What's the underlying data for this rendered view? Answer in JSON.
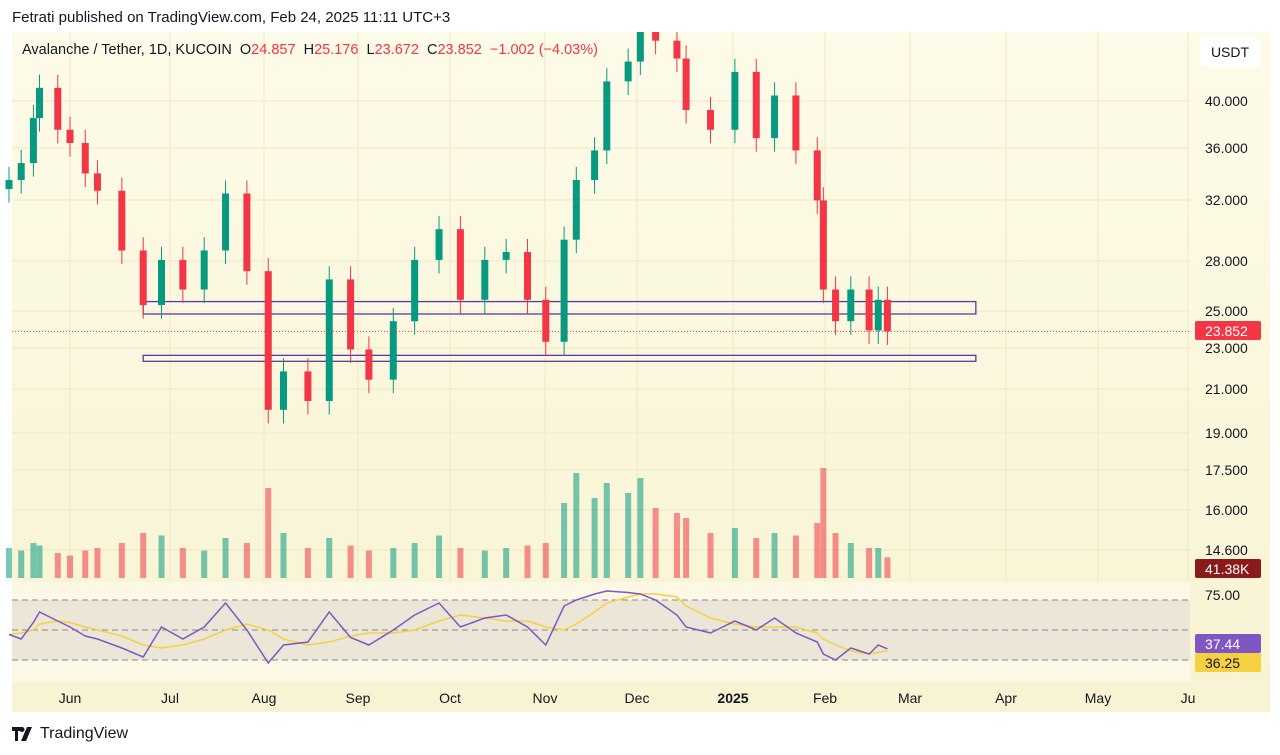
{
  "header": {
    "published": "Fetrati published on TradingView.com, Feb 24, 2025 11:11 UTC+3"
  },
  "legend": {
    "symbol": "Avalanche / Tether, 1D, KUCOIN",
    "o_label": "O",
    "o": "24.857",
    "h_label": "H",
    "h": "25.176",
    "l_label": "L",
    "l": "23.672",
    "c_label": "C",
    "c": "23.852",
    "change": "−1.002 (−4.03%)"
  },
  "currency_button": "USDT",
  "footer": {
    "brand": "TradingView",
    "logo_icon": "tradingview-logo-icon"
  },
  "colors": {
    "up": "#089981",
    "down": "#f23645",
    "rsi": "#7e57c2",
    "rsi_ma": "#f5d142",
    "zone": "#5b3a9e",
    "last_price": "#f23645",
    "volume_label": "#8b1a1a"
  },
  "chart_data": {
    "type": "candlestick",
    "price_scale": "log",
    "ylim": [
      14.6,
      47.5
    ],
    "y_ticks": [
      "40.000",
      "36.000",
      "32.000",
      "28.000",
      "25.000",
      "23.000",
      "21.000",
      "19.000",
      "17.500",
      "16.000",
      "14.600"
    ],
    "x_ticks": [
      "Jun",
      "Jul",
      "Aug",
      "Sep",
      "Oct",
      "Nov",
      "Dec",
      "2025",
      "Feb",
      "Mar",
      "Apr",
      "May",
      "Ju"
    ],
    "last_price_label": "23.852",
    "volume_label": "41.38K",
    "rsi_labels": {
      "upper": "75.00",
      "rsi": "37.44",
      "rsi_ma": "36.25"
    },
    "rsi_levels": [
      70,
      50,
      30
    ],
    "zones": [
      {
        "high": 25.5,
        "low": 24.8,
        "from": "2024-06-25",
        "to": "2025-03-25"
      },
      {
        "high": 22.6,
        "low": 22.3,
        "from": "2024-06-25",
        "to": "2025-03-25"
      }
    ],
    "dates": [
      "2024-05-12",
      "2024-05-16",
      "2024-05-20",
      "2024-05-22",
      "2024-05-28",
      "2024-06-01",
      "2024-06-06",
      "2024-06-10",
      "2024-06-18",
      "2024-06-25",
      "2024-07-01",
      "2024-07-08",
      "2024-07-15",
      "2024-07-22",
      "2024-07-29",
      "2024-08-05",
      "2024-08-10",
      "2024-08-18",
      "2024-08-25",
      "2024-09-01",
      "2024-09-07",
      "2024-09-15",
      "2024-09-22",
      "2024-09-30",
      "2024-10-07",
      "2024-10-15",
      "2024-10-22",
      "2024-10-29",
      "2024-11-04",
      "2024-11-10",
      "2024-11-14",
      "2024-11-20",
      "2024-11-24",
      "2024-12-01",
      "2024-12-05",
      "2024-12-10",
      "2024-12-17",
      "2024-12-20",
      "2024-12-28",
      "2025-01-05",
      "2025-01-12",
      "2025-01-18",
      "2025-01-25",
      "2025-02-01",
      "2025-02-03",
      "2025-02-07",
      "2025-02-12",
      "2025-02-18",
      "2025-02-21",
      "2025-02-24"
    ],
    "close": [
      33.5,
      34.8,
      38.5,
      41.2,
      37.5,
      36.4,
      34.0,
      32.7,
      28.6,
      25.3,
      28.0,
      26.2,
      28.6,
      32.5,
      27.3,
      20.0,
      21.8,
      20.4,
      26.8,
      22.9,
      21.4,
      24.4,
      28.0,
      30.0,
      25.6,
      28.0,
      28.5,
      25.6,
      23.3,
      29.3,
      33.5,
      35.8,
      41.8,
      43.7,
      47.0,
      45.8,
      44.0,
      39.2,
      37.5,
      42.7,
      36.8,
      40.5,
      35.8,
      32.0,
      26.2,
      24.4,
      26.2,
      23.9,
      25.6,
      23.852
    ],
    "volume_k": [
      60,
      55,
      70,
      65,
      50,
      45,
      55,
      60,
      70,
      90,
      85,
      60,
      55,
      80,
      70,
      180,
      90,
      60,
      80,
      65,
      55,
      60,
      70,
      85,
      60,
      55,
      60,
      65,
      70,
      150,
      210,
      160,
      190,
      170,
      200,
      140,
      130,
      120,
      90,
      100,
      80,
      90,
      85,
      110,
      220,
      90,
      70,
      60,
      60,
      41.38
    ],
    "rsi": [
      47,
      44,
      55,
      62,
      56,
      52,
      46,
      44,
      38,
      32,
      52,
      44,
      52,
      68,
      50,
      28,
      40,
      42,
      62,
      45,
      40,
      50,
      60,
      68,
      52,
      58,
      60,
      52,
      40,
      66,
      70,
      74,
      76,
      75,
      74,
      70,
      60,
      52,
      48,
      56,
      50,
      58,
      48,
      42,
      34,
      30,
      38,
      34,
      40,
      37.44
    ],
    "rsi_ma": [
      47,
      48,
      50,
      54,
      56,
      55,
      52,
      50,
      46,
      40,
      38,
      40,
      44,
      50,
      54,
      50,
      44,
      40,
      42,
      46,
      48,
      48,
      50,
      56,
      60,
      58,
      56,
      56,
      52,
      50,
      54,
      62,
      68,
      72,
      74,
      74,
      72,
      66,
      58,
      54,
      52,
      52,
      52,
      48,
      44,
      40,
      36,
      34,
      35,
      36.25
    ]
  }
}
